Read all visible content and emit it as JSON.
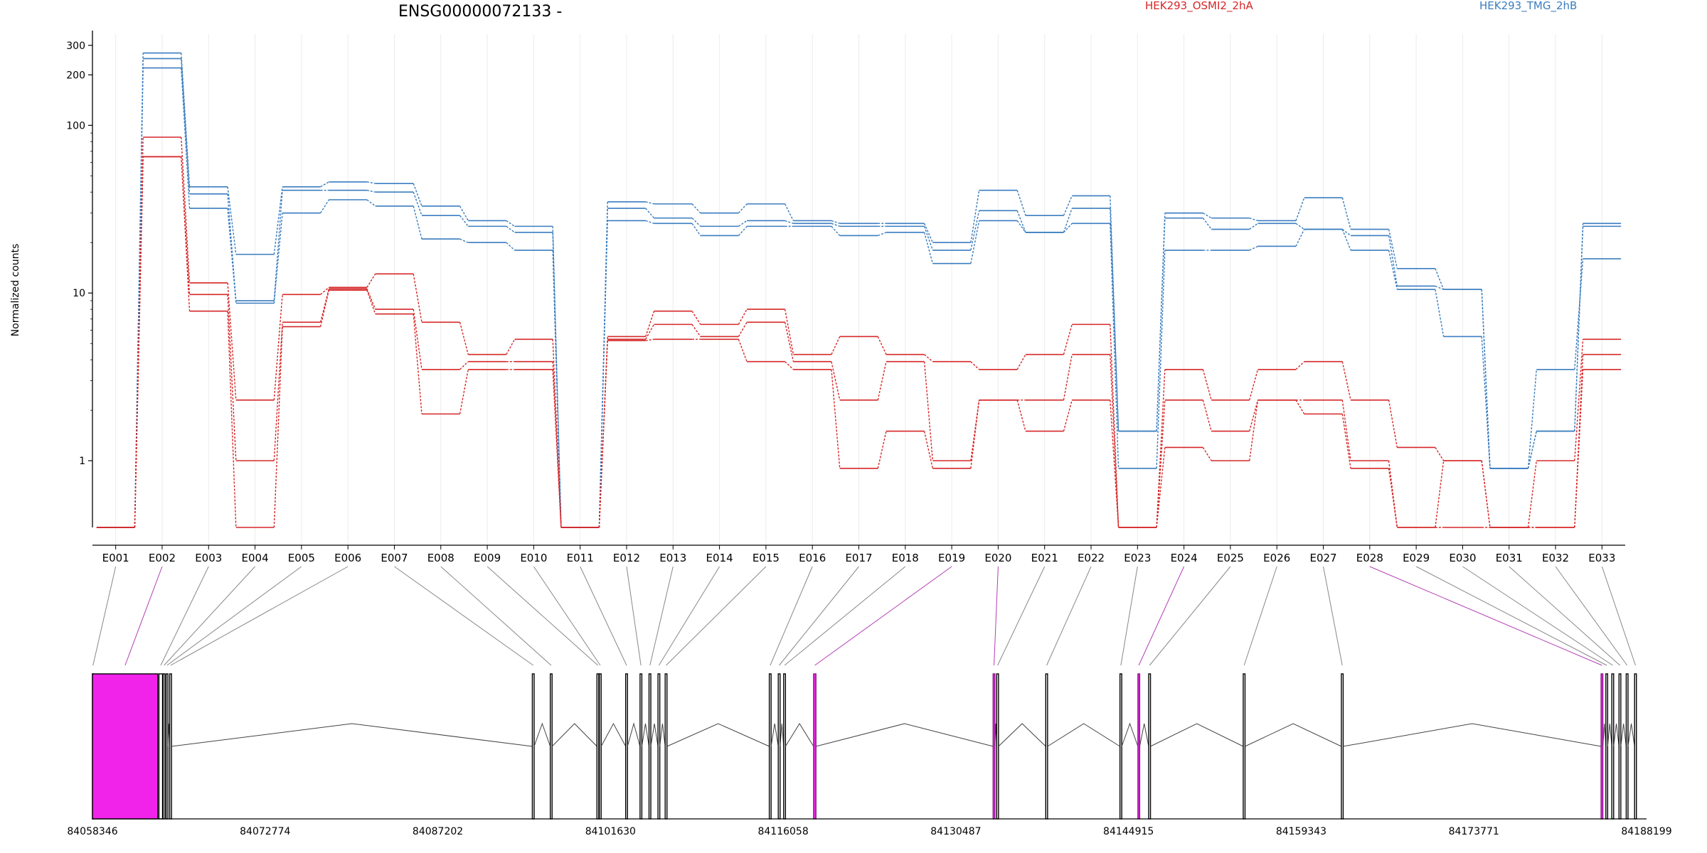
{
  "chart_data": {
    "type": "line",
    "title": "ENSG00000072133 -",
    "ylabel": "Normalized counts",
    "xlabel": "",
    "y_scale": "log",
    "ylim": [
      0.4,
      350
    ],
    "y_ticks": [
      1,
      10,
      100,
      200,
      300
    ],
    "grid": "vertical lines at exon positions",
    "legend": [
      {
        "label": "HEK293_OSMI2_2hA",
        "color": "#d62728",
        "placement": "top"
      },
      {
        "label": "HEK293_TMG_2hB",
        "color": "#3a7dbf",
        "placement": "top-right"
      }
    ],
    "categories": [
      "E001",
      "E002",
      "E003",
      "E004",
      "E005",
      "E006",
      "E007",
      "E008",
      "E009",
      "E010",
      "E011",
      "E012",
      "E013",
      "E014",
      "E015",
      "E016",
      "E017",
      "E018",
      "E019",
      "E020",
      "E021",
      "E022",
      "E023",
      "E024",
      "E025",
      "E026",
      "E027",
      "E028",
      "E029",
      "E030",
      "E031",
      "E032",
      "E033"
    ],
    "series": [
      {
        "group": "HEK293_TMG_2hB",
        "color": "#3a7dbf",
        "values": [
          0.4,
          270,
          43,
          17,
          43,
          46,
          45,
          33,
          27,
          25,
          0.4,
          35,
          34,
          30,
          34,
          27,
          26,
          26,
          20,
          41,
          29,
          38,
          1.5,
          30,
          28,
          27,
          37,
          24,
          14,
          10.5,
          0.9,
          1.5,
          26
        ]
      },
      {
        "group": "HEK293_TMG_2hB",
        "color": "#3a7dbf",
        "values": [
          0.4,
          250,
          39,
          9,
          41,
          41,
          40,
          29,
          25,
          23,
          0.4,
          32,
          28,
          25,
          27,
          26,
          25,
          25,
          18,
          31,
          23,
          32,
          1.5,
          28,
          24,
          26,
          24,
          22,
          11,
          10.5,
          0.9,
          1.5,
          25
        ]
      },
      {
        "group": "HEK293_TMG_2hB",
        "color": "#3a7dbf",
        "values": [
          0.4,
          220,
          32,
          8.7,
          30,
          36,
          33,
          21,
          20,
          18,
          0.4,
          27,
          26,
          22,
          25,
          25,
          22,
          23,
          15,
          27,
          23,
          26,
          0.9,
          18,
          18,
          19,
          24,
          18,
          10.5,
          5.5,
          0.9,
          3.5,
          16
        ]
      },
      {
        "group": "HEK293_OSMI2_2hA",
        "color": "#d62728",
        "values": [
          0.4,
          85,
          11.5,
          2.3,
          9.8,
          10.8,
          13,
          6.7,
          4.3,
          5.3,
          0.4,
          5.5,
          7.8,
          6.5,
          8,
          4.3,
          5.5,
          4.3,
          3.9,
          3.5,
          4.3,
          6.5,
          0.4,
          3.5,
          2.3,
          3.5,
          3.9,
          2.3,
          1.2,
          1,
          0.4,
          1,
          5.3
        ]
      },
      {
        "group": "HEK293_OSMI2_2hA",
        "color": "#d62728",
        "values": [
          0.4,
          65,
          9.8,
          1,
          6.7,
          10.6,
          8,
          3.5,
          3.9,
          3.9,
          0.4,
          5.3,
          6.5,
          5.5,
          6.7,
          3.9,
          2.3,
          3.9,
          1,
          2.3,
          2.3,
          4.3,
          0.4,
          2.3,
          1.5,
          2.3,
          2.3,
          1,
          0.4,
          0.4,
          0.4,
          0.4,
          4.3
        ]
      },
      {
        "group": "HEK293_OSMI2_2hA",
        "color": "#d62728",
        "values": [
          0.4,
          65,
          7.8,
          0.4,
          6.3,
          10.4,
          7.5,
          1.9,
          3.5,
          3.5,
          0.4,
          5.2,
          5.3,
          5.3,
          3.9,
          3.5,
          0.9,
          1.5,
          0.9,
          2.3,
          1.5,
          2.3,
          0.4,
          1.2,
          1,
          2.3,
          1.9,
          0.9,
          0.4,
          1,
          0.4,
          0.4,
          3.5
        ]
      }
    ],
    "gene_model": {
      "genomic_ticks": [
        "84058346",
        "84072774",
        "84087202",
        "84101630",
        "84116058",
        "84130487",
        "84144915",
        "84159343",
        "84173771",
        "84188199"
      ],
      "genomic_range": [
        84058346,
        84188199
      ],
      "exons": [
        {
          "id": "E001",
          "start": 84058346,
          "end": 84058346,
          "highlight": false
        },
        {
          "id": "E002",
          "start": 84058346,
          "end": 84063800,
          "highlight": true
        },
        {
          "id": "E003",
          "start": 84063900,
          "end": 84064200,
          "highlight": false
        },
        {
          "id": "E004",
          "start": 84064250,
          "end": 84064400,
          "highlight": false
        },
        {
          "id": "E005",
          "start": 84064500,
          "end": 84064650,
          "highlight": false
        },
        {
          "id": "E006",
          "start": 84064800,
          "end": 84064950,
          "highlight": false
        },
        {
          "id": "E007",
          "start": 84095100,
          "end": 84095250,
          "highlight": false
        },
        {
          "id": "E008",
          "start": 84096600,
          "end": 84096750,
          "highlight": false
        },
        {
          "id": "E009",
          "start": 84100500,
          "end": 84100650,
          "highlight": false
        },
        {
          "id": "E010",
          "start": 84100700,
          "end": 84100850,
          "highlight": false
        },
        {
          "id": "E011",
          "start": 84102900,
          "end": 84103050,
          "highlight": false
        },
        {
          "id": "E012",
          "start": 84104100,
          "end": 84104250,
          "highlight": false
        },
        {
          "id": "E013",
          "start": 84104850,
          "end": 84105000,
          "highlight": false
        },
        {
          "id": "E014",
          "start": 84105600,
          "end": 84105750,
          "highlight": false
        },
        {
          "id": "E015",
          "start": 84106200,
          "end": 84106350,
          "highlight": false
        },
        {
          "id": "E016",
          "start": 84114900,
          "end": 84115050,
          "highlight": false
        },
        {
          "id": "E017",
          "start": 84115650,
          "end": 84115800,
          "highlight": false
        },
        {
          "id": "E018",
          "start": 84116100,
          "end": 84116250,
          "highlight": false
        },
        {
          "id": "E019",
          "start": 84118600,
          "end": 84118800,
          "highlight": true
        },
        {
          "id": "E020",
          "start": 84133600,
          "end": 84133750,
          "highlight": true
        },
        {
          "id": "E021",
          "start": 84133900,
          "end": 84134050,
          "highlight": false
        },
        {
          "id": "E022",
          "start": 84138000,
          "end": 84138150,
          "highlight": false
        },
        {
          "id": "E023",
          "start": 84144200,
          "end": 84144350,
          "highlight": false
        },
        {
          "id": "E024",
          "start": 84145700,
          "end": 84145850,
          "highlight": true
        },
        {
          "id": "E025",
          "start": 84146600,
          "end": 84146750,
          "highlight": false
        },
        {
          "id": "E026",
          "start": 84154500,
          "end": 84154650,
          "highlight": false
        },
        {
          "id": "E027",
          "start": 84162700,
          "end": 84162850,
          "highlight": false
        },
        {
          "id": "E028",
          "start": 84184400,
          "end": 84184550,
          "highlight": true
        },
        {
          "id": "E029",
          "start": 84184800,
          "end": 84184950,
          "highlight": false
        },
        {
          "id": "E030",
          "start": 84185300,
          "end": 84185450,
          "highlight": false
        },
        {
          "id": "E031",
          "start": 84185900,
          "end": 84186050,
          "highlight": false
        },
        {
          "id": "E032",
          "start": 84186500,
          "end": 84186650,
          "highlight": false
        },
        {
          "id": "E033",
          "start": 84187200,
          "end": 84187350,
          "highlight": false
        }
      ]
    }
  }
}
